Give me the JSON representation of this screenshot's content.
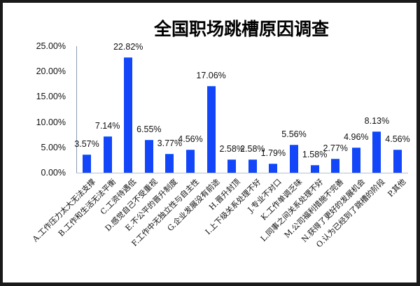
{
  "chart_data": {
    "type": "bar",
    "title": "全国职场跳槽原因调查",
    "xlabel": "",
    "ylabel": "",
    "ylim": [
      0,
      25
    ],
    "yticks": [
      "0.00%",
      "5.00%",
      "10.00%",
      "15.00%",
      "20.00%",
      "25.00%"
    ],
    "grid": false,
    "legend": null,
    "bar_color": "#0a3ef5",
    "categories": [
      "A.工作压力太大无法支撑",
      "B.工作和生活无法平衡",
      "C.工资待遇低",
      "D.感觉自己不受重视",
      "E.不公平的晋升制度",
      "F.工作中无独立性与自主性",
      "G.企业发展没有前途",
      "H.晋升封顶",
      "I.上下级关系处理不好",
      "J.专业不对口",
      "K.工作单调乏味",
      "L.同事之间关系处理不好",
      "M.公司福利措施不完善",
      "N.获得了更好的发展机会",
      "O.认为已经到了跳槽的阶段",
      "P.其他"
    ],
    "values": [
      3.57,
      7.14,
      22.82,
      6.55,
      3.77,
      4.56,
      17.06,
      2.58,
      2.58,
      1.79,
      5.56,
      1.58,
      2.77,
      4.96,
      8.13,
      4.56
    ],
    "value_labels": [
      "3.57%",
      "7.14%",
      "22.82%",
      "6.55%",
      "3.77%",
      "4.56%",
      "17.06%",
      "2.58%",
      "2.58%",
      "1.79%",
      "5.56%",
      "1.58%",
      "2.77%",
      "4.96%",
      "8.13%",
      "4.56%"
    ]
  }
}
